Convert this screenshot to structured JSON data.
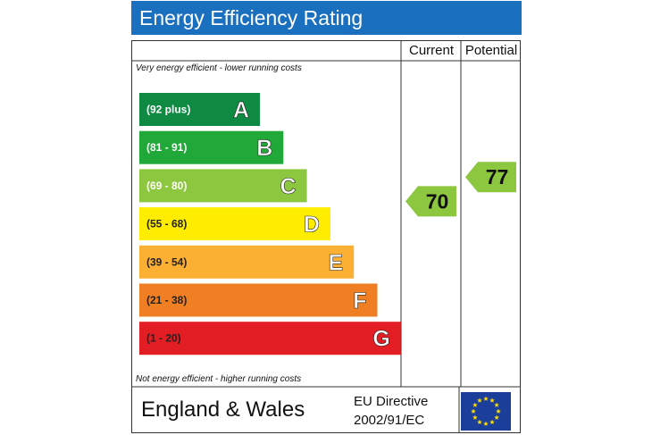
{
  "header": {
    "title": "Energy Efficiency Rating"
  },
  "columns": {
    "current": "Current",
    "potential": "Potential"
  },
  "notes": {
    "top": "Very energy efficient - lower running costs",
    "bottom": "Not energy efficient - higher running costs"
  },
  "footer": {
    "region": "England & Wales",
    "directive_line1": "EU Directive",
    "directive_line2": "2002/91/EC"
  },
  "chart_data": {
    "type": "bar",
    "title": "Energy Efficiency Rating",
    "categories": [
      "A",
      "B",
      "C",
      "D",
      "E",
      "F",
      "G"
    ],
    "ranges": [
      "(92 plus)",
      "(81 - 91)",
      "(69 - 80)",
      "(55 - 68)",
      "(39 - 54)",
      "(21 - 38)",
      "(1 - 20)"
    ],
    "colors": [
      "#0f8a43",
      "#20a839",
      "#8dc63f",
      "#ffed00",
      "#fbb033",
      "#ef7f22",
      "#e31d24"
    ],
    "current": {
      "value": 70,
      "band": "C",
      "color": "#8dc63f"
    },
    "potential": {
      "value": 77,
      "band": "C",
      "color": "#8dc63f"
    }
  }
}
